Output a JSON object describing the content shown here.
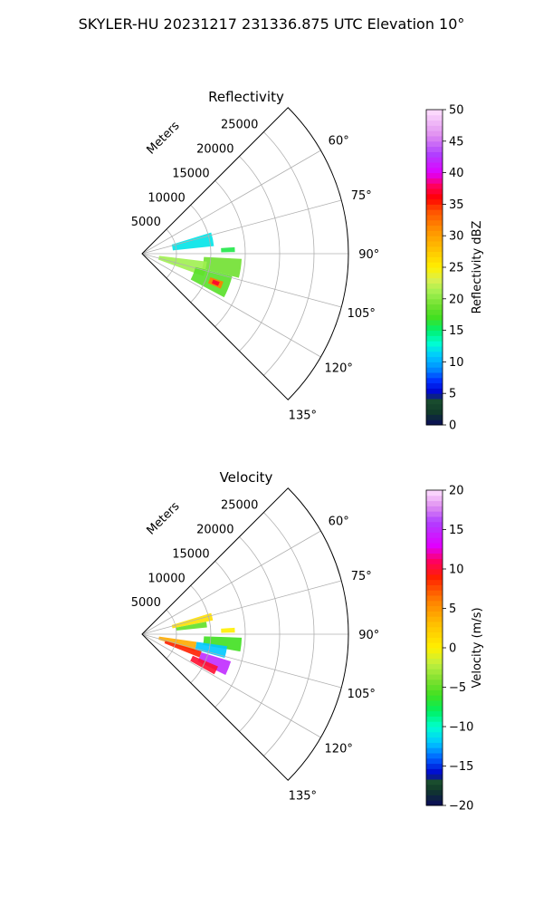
{
  "figure": {
    "suptitle": "SKYLER-HU  20231217  231336.875 UTC Elevation 10°"
  },
  "chart_data": [
    {
      "type": "heatmap",
      "subtype": "polar-sector",
      "title": "Reflectivity",
      "range_label": "Meters",
      "range_ticks": [
        5000,
        10000,
        15000,
        20000,
        25000
      ],
      "range_tick_labels": [
        "5000",
        "10000",
        "15000",
        "20000",
        "25000"
      ],
      "azimuth_limits_deg": [
        45,
        135
      ],
      "azimuth_ticks_deg": [
        60,
        75,
        90,
        105,
        120,
        135
      ],
      "azimuth_tick_labels": [
        "60°",
        "75°",
        "90°",
        "105°",
        "120°",
        "135°"
      ],
      "range_max": 30000,
      "grid": true,
      "colorbar": {
        "label": "Reflectivity dBZ",
        "min": 0,
        "max": 50,
        "ticks": [
          0,
          5,
          10,
          15,
          20,
          25,
          30,
          35,
          40,
          45,
          50
        ],
        "tick_labels": [
          "0",
          "5",
          "10",
          "15",
          "20",
          "25",
          "30",
          "35",
          "40",
          "45",
          "50"
        ],
        "stops": [
          {
            "v": 0,
            "c": "#0a0a5a"
          },
          {
            "v": 2,
            "c": "#113a2a"
          },
          {
            "v": 4,
            "c": "#1a4d2e"
          },
          {
            "v": 5,
            "c": "#0000c8"
          },
          {
            "v": 7,
            "c": "#0030ff"
          },
          {
            "v": 9,
            "c": "#0090ff"
          },
          {
            "v": 11,
            "c": "#00c8ff"
          },
          {
            "v": 13,
            "c": "#00ffd0"
          },
          {
            "v": 15,
            "c": "#00f070"
          },
          {
            "v": 17,
            "c": "#40e020"
          },
          {
            "v": 19,
            "c": "#70e030"
          },
          {
            "v": 21,
            "c": "#a0f050"
          },
          {
            "v": 23,
            "c": "#d8f050"
          },
          {
            "v": 25,
            "c": "#fff000"
          },
          {
            "v": 28,
            "c": "#ffc000"
          },
          {
            "v": 31,
            "c": "#ff9000"
          },
          {
            "v": 34,
            "c": "#ff5000"
          },
          {
            "v": 36,
            "c": "#ff0000"
          },
          {
            "v": 38,
            "c": "#ff0060"
          },
          {
            "v": 40,
            "c": "#e000ff"
          },
          {
            "v": 43,
            "c": "#b040ff"
          },
          {
            "v": 46,
            "c": "#e090f0"
          },
          {
            "v": 50,
            "c": "#ffe0ff"
          }
        ]
      },
      "echo_regions": [
        {
          "az": [
            73,
            84
          ],
          "r": [
            4500,
            10500
          ],
          "value": 12
        },
        {
          "az": [
            86,
            89
          ],
          "r": [
            11500,
            13500
          ],
          "value": 16
        },
        {
          "az": [
            93,
            104
          ],
          "r": [
            9000,
            14500
          ],
          "value": 19
        },
        {
          "az": [
            97,
            110
          ],
          "r": [
            2500,
            9500
          ],
          "value": 21
        },
        {
          "az": [
            104,
            118
          ],
          "r": [
            8000,
            13500
          ],
          "value": 18
        },
        {
          "az": [
            109,
            114
          ],
          "r": [
            10500,
            12500
          ],
          "value": 32
        },
        {
          "az": [
            110,
            113
          ],
          "r": [
            11000,
            12000
          ],
          "value": 37
        }
      ]
    },
    {
      "type": "heatmap",
      "subtype": "polar-sector",
      "title": "Velocity",
      "range_label": "Meters",
      "range_ticks": [
        5000,
        10000,
        15000,
        20000,
        25000
      ],
      "range_tick_labels": [
        "5000",
        "10000",
        "15000",
        "20000",
        "25000"
      ],
      "azimuth_limits_deg": [
        45,
        135
      ],
      "azimuth_ticks_deg": [
        60,
        75,
        90,
        105,
        120,
        135
      ],
      "azimuth_tick_labels": [
        "60°",
        "75°",
        "90°",
        "105°",
        "120°",
        "135°"
      ],
      "range_max": 30000,
      "grid": true,
      "colorbar": {
        "label": "Velocity (m/s)",
        "min": -20,
        "max": 20,
        "ticks": [
          -20,
          -15,
          -10,
          -5,
          0,
          5,
          10,
          15,
          20
        ],
        "tick_labels": [
          "−20",
          "−15",
          "−10",
          "−5",
          "0",
          "5",
          "10",
          "15",
          "20"
        ],
        "stops": [
          {
            "v": -20,
            "c": "#0a0a5a"
          },
          {
            "v": -18,
            "c": "#113a2a"
          },
          {
            "v": -17,
            "c": "#1a4d2e"
          },
          {
            "v": -16,
            "c": "#0000c8"
          },
          {
            "v": -14,
            "c": "#0060ff"
          },
          {
            "v": -12,
            "c": "#00c8ff"
          },
          {
            "v": -10,
            "c": "#00ffd0"
          },
          {
            "v": -8,
            "c": "#00f060"
          },
          {
            "v": -6,
            "c": "#40e020"
          },
          {
            "v": -4,
            "c": "#80e030"
          },
          {
            "v": -2,
            "c": "#c0f040"
          },
          {
            "v": 0,
            "c": "#fff000"
          },
          {
            "v": 3,
            "c": "#ffc000"
          },
          {
            "v": 6,
            "c": "#ff8000"
          },
          {
            "v": 9,
            "c": "#ff2000"
          },
          {
            "v": 11,
            "c": "#ff0060"
          },
          {
            "v": 13,
            "c": "#e000ff"
          },
          {
            "v": 16,
            "c": "#b040ff"
          },
          {
            "v": 18,
            "c": "#e090f0"
          },
          {
            "v": 20,
            "c": "#ffe0ff"
          }
        ]
      },
      "echo_regions": [
        {
          "az": [
            73,
            79
          ],
          "r": [
            4500,
            10500
          ],
          "value": 1
        },
        {
          "az": [
            79,
            84
          ],
          "r": [
            5000,
            9500
          ],
          "value": -5
        },
        {
          "az": [
            86,
            89
          ],
          "r": [
            11500,
            13500
          ],
          "value": 0
        },
        {
          "az": [
            92,
            100
          ],
          "r": [
            9000,
            14500
          ],
          "value": -6
        },
        {
          "az": [
            98,
            106
          ],
          "r": [
            8000,
            12500
          ],
          "value": -12
        },
        {
          "az": [
            98,
            108
          ],
          "r": [
            2500,
            8000
          ],
          "value": 4
        },
        {
          "az": [
            106,
            112
          ],
          "r": [
            3500,
            9000
          ],
          "value": 9
        },
        {
          "az": [
            107,
            116
          ],
          "r": [
            9000,
            13500
          ],
          "value": 15
        },
        {
          "az": [
            113,
            119
          ],
          "r": [
            8000,
            12000
          ],
          "value": 10
        }
      ]
    }
  ]
}
